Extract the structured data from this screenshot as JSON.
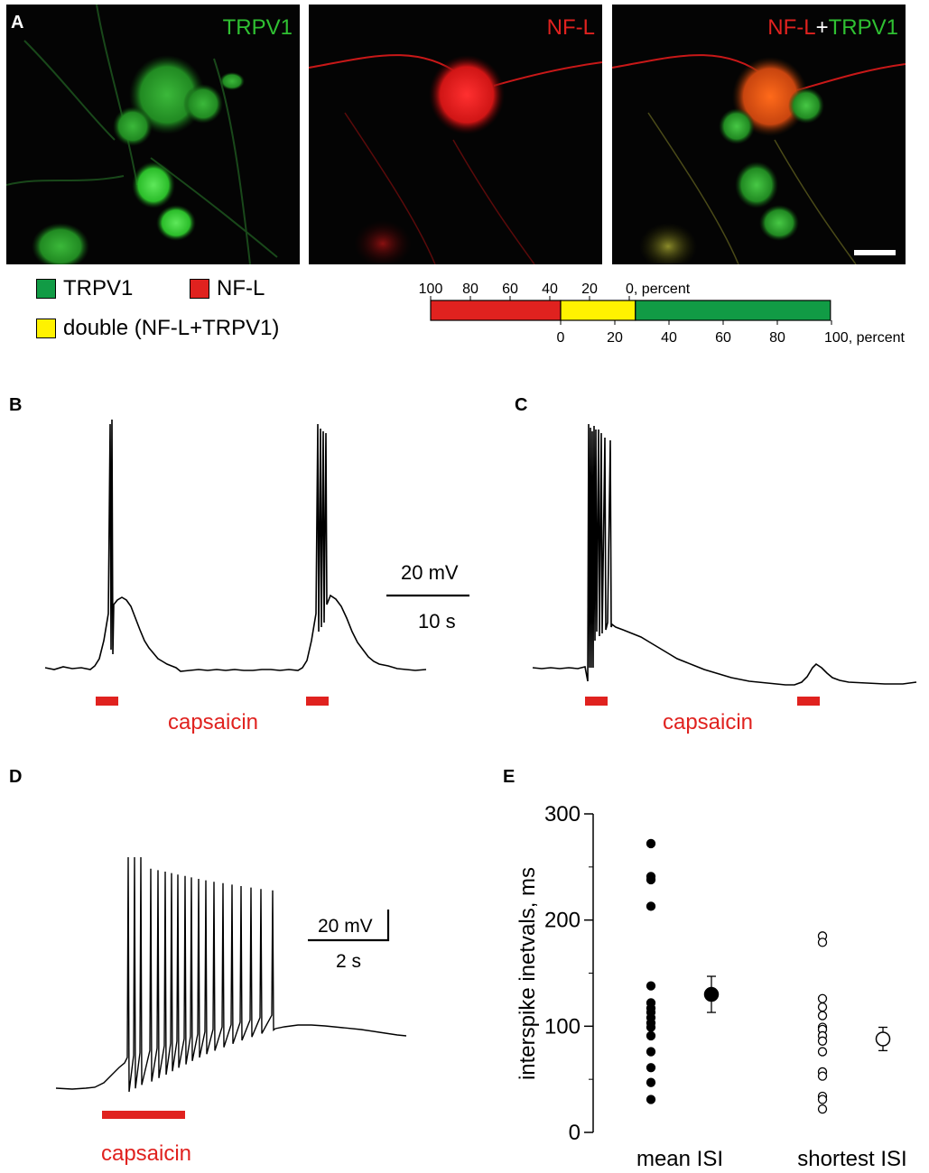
{
  "panels": {
    "a": "A",
    "b": "B",
    "c": "C",
    "d": "D",
    "e": "E"
  },
  "micrographs": [
    {
      "title": "TRPV1"
    },
    {
      "title": "NF-L"
    },
    {
      "title_part1": "NF-L",
      "title_plus": "+",
      "title_part2": "TRPV1"
    }
  ],
  "legend": {
    "trpv1": "TRPV1",
    "nfl": "NF-L",
    "double": "double (NF-L+TRPV1)",
    "colors": {
      "trpv1": "#119b45",
      "nfl": "#e0221f",
      "double": "#fff200"
    }
  },
  "traces": {
    "b": {
      "scale_mv": "20 mV",
      "scale_s": "10 s",
      "stim_label": "capsaicin"
    },
    "c": {
      "stim_label": "capsaicin"
    },
    "d": {
      "scale_mv": "20 mV",
      "scale_s": "2 s",
      "stim_label": "capsaicin"
    }
  },
  "chart_data": [
    {
      "type": "bar",
      "orientation": "horizontal-stacked",
      "segments": [
        {
          "name": "NF-L",
          "value": 40,
          "color": "#e0221f"
        },
        {
          "name": "double (NF-L+TRPV1)",
          "value": 23,
          "color": "#fff200"
        },
        {
          "name": "TRPV1",
          "value": 60,
          "color": "#119b45"
        }
      ],
      "top_axis": {
        "ticks": [
          "100",
          "80",
          "60",
          "40",
          "20",
          "0, percent"
        ],
        "range": [
          100,
          0
        ]
      },
      "bottom_axis": {
        "ticks": [
          "0",
          "20",
          "40",
          "60",
          "80",
          "100, percent"
        ],
        "range": [
          0,
          100
        ]
      }
    },
    {
      "type": "scatter",
      "ylabel": "interspike inetvals, ms",
      "ylim": [
        0,
        300
      ],
      "yticks": [
        0,
        100,
        200,
        300
      ],
      "categories": [
        "mean ISI",
        "shortest ISI"
      ],
      "series": [
        {
          "category": "mean ISI",
          "marker": "filled",
          "values": [
            272,
            241,
            238,
            213,
            138,
            122,
            117,
            113,
            108,
            103,
            99,
            91,
            76,
            61,
            47,
            31
          ],
          "mean": 130,
          "err": 17
        },
        {
          "category": "shortest ISI",
          "marker": "open",
          "values": [
            185,
            179,
            126,
            118,
            110,
            99,
            97,
            91,
            86,
            76,
            57,
            53,
            34,
            31,
            22
          ],
          "mean": 88,
          "err": 11
        }
      ]
    }
  ]
}
